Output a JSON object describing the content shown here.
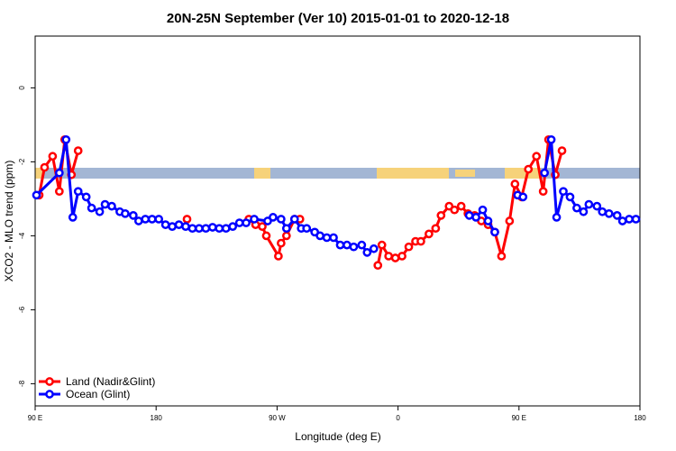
{
  "chart_data": {
    "type": "line",
    "title": "20N-25N September (Ver 10)   2015-01-01 to 2020-12-18",
    "xlabel": "Longitude (deg E)",
    "ylabel": "XCO2 - MLO trend (ppm)",
    "xlim": [
      90,
      540
    ],
    "ylim": [
      -8.6,
      1.4
    ],
    "xticks": [
      {
        "value": 90,
        "label": "90 E"
      },
      180,
      {
        "value": 270,
        "label": "90 W"
      },
      {
        "value": 360,
        "label": "0"
      },
      {
        "value": 450,
        "label": "90 E"
      },
      {
        "value": 540,
        "label": "180"
      }
    ],
    "yticks": [
      0,
      -2,
      -4,
      -6,
      -8
    ],
    "legend": "bottom-left",
    "series": [
      {
        "name": "Land (Nadir&Glint)",
        "color": "#ff0000",
        "x": [
          93,
          97,
          103,
          108,
          112,
          117,
          122,
          160,
          203,
          230,
          249,
          254,
          259,
          262,
          271,
          273,
          277,
          283,
          287,
          320,
          345,
          348,
          353,
          358,
          363,
          368,
          373,
          377,
          383,
          388,
          392,
          398,
          402,
          407,
          412,
          417,
          422,
          427,
          432,
          437,
          443,
          447,
          452,
          457,
          463,
          468,
          472,
          477,
          482
        ],
        "values": [
          -2.9,
          -2.15,
          -1.85,
          -2.8,
          -1.4,
          -2.35,
          -1.7,
          null,
          -3.55,
          null,
          -3.55,
          -3.7,
          -3.75,
          -4.0,
          -4.55,
          -4.2,
          -4.0,
          -3.55,
          -3.55,
          null,
          -4.8,
          -4.25,
          -4.55,
          -4.6,
          -4.55,
          -4.3,
          -4.15,
          -4.15,
          -3.95,
          -3.8,
          -3.45,
          -3.2,
          -3.3,
          -3.2,
          -3.4,
          -3.45,
          -3.6,
          -3.7,
          -3.9,
          -4.55,
          -3.6,
          -2.6,
          -2.95,
          -2.2,
          -1.85,
          -2.8,
          -1.4,
          -2.35,
          -1.7
        ]
      },
      {
        "name": "Ocean (Glint)",
        "color": "#0000ff",
        "x": [
          91,
          108,
          113,
          118,
          122,
          128,
          132,
          138,
          142,
          147,
          153,
          157,
          163,
          167,
          172,
          177,
          182,
          187,
          192,
          197,
          202,
          207,
          212,
          217,
          222,
          227,
          232,
          237,
          242,
          247,
          253,
          263,
          267,
          273,
          277,
          283,
          288,
          292,
          298,
          302,
          307,
          312,
          317,
          322,
          327,
          333,
          337,
          342,
          380,
          413,
          418,
          423,
          427,
          432,
          440,
          449,
          453,
          460,
          469,
          474,
          478,
          483,
          488,
          493,
          498,
          502,
          508,
          512,
          517,
          523,
          527,
          532,
          537
        ],
        "values": [
          -2.9,
          -2.3,
          -1.4,
          -3.5,
          -2.8,
          -2.95,
          -3.25,
          -3.35,
          -3.15,
          -3.2,
          -3.35,
          -3.4,
          -3.45,
          -3.6,
          -3.55,
          -3.55,
          -3.55,
          -3.7,
          -3.75,
          -3.7,
          -3.75,
          -3.8,
          -3.8,
          -3.8,
          -3.77,
          -3.8,
          -3.8,
          -3.75,
          -3.65,
          -3.65,
          -3.55,
          -3.6,
          -3.5,
          -3.55,
          -3.8,
          -3.55,
          -3.8,
          -3.8,
          -3.9,
          -4.0,
          -4.05,
          -4.05,
          -4.25,
          -4.25,
          -4.3,
          -4.25,
          -4.45,
          -4.35,
          null,
          -3.45,
          -3.5,
          -3.3,
          -3.6,
          -3.9,
          null,
          -2.9,
          -2.95,
          null,
          -2.3,
          -1.4,
          -3.5,
          -2.8,
          -2.95,
          -3.25,
          -3.35,
          -3.15,
          -3.2,
          -3.35,
          -3.4,
          -3.45,
          -3.6,
          -3.55,
          -3.55
        ]
      }
    ]
  }
}
